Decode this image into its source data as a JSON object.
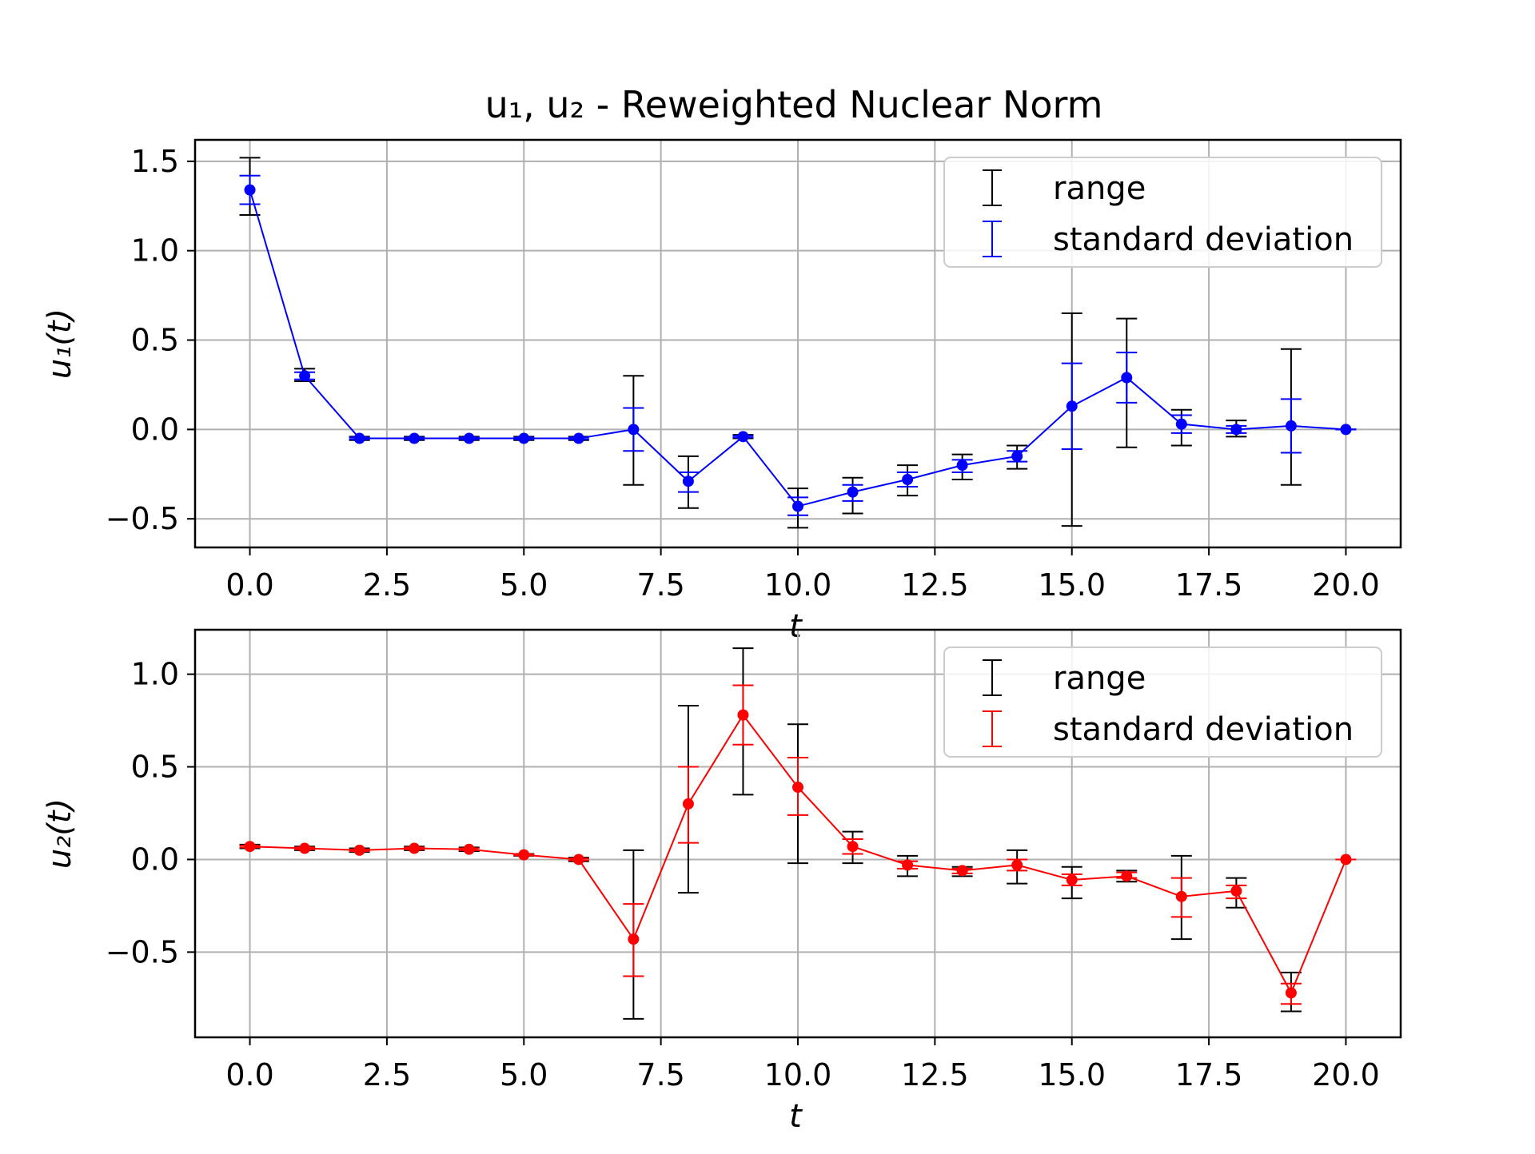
{
  "title": "u₁, u₂ - Reweighted Nuclear Norm",
  "chart_data": [
    {
      "type": "line",
      "name": "top-panel",
      "ylabel": "u₁(t)",
      "xlabel": "t",
      "xlim": [
        -1,
        21
      ],
      "ylim": [
        -0.66,
        1.62
      ],
      "xticks": [
        0,
        2.5,
        5,
        7.5,
        10,
        12.5,
        15,
        17.5,
        20
      ],
      "xtick_labels": [
        "0.0",
        "2.5",
        "5.0",
        "7.5",
        "10.0",
        "12.5",
        "15.0",
        "17.5",
        "20.0"
      ],
      "yticks": [
        -0.5,
        0,
        0.5,
        1.0,
        1.5
      ],
      "ytick_labels": [
        "−0.5",
        "0.0",
        "0.5",
        "1.0",
        "1.5"
      ],
      "grid": true,
      "legend_position": "top-right",
      "legend": [
        "range",
        "standard deviation"
      ],
      "line_color": "#0000ff",
      "range_color": "#000000",
      "x": [
        0,
        1,
        2,
        3,
        4,
        5,
        6,
        7,
        8,
        9,
        10,
        11,
        12,
        13,
        14,
        15,
        16,
        17,
        18,
        19,
        20
      ],
      "values": [
        1.34,
        0.3,
        -0.05,
        -0.05,
        -0.05,
        -0.05,
        -0.05,
        0.0,
        -0.29,
        -0.04,
        -0.43,
        -0.35,
        -0.28,
        -0.2,
        -0.15,
        0.13,
        0.29,
        0.03,
        0.0,
        0.02,
        0.0
      ],
      "range_low": [
        1.2,
        0.27,
        -0.06,
        -0.06,
        -0.06,
        -0.06,
        -0.06,
        -0.31,
        -0.44,
        -0.05,
        -0.55,
        -0.47,
        -0.37,
        -0.28,
        -0.22,
        -0.54,
        -0.1,
        -0.09,
        -0.04,
        -0.31,
        0.0
      ],
      "range_high": [
        1.52,
        0.34,
        -0.04,
        -0.04,
        -0.04,
        -0.04,
        -0.04,
        0.3,
        -0.15,
        -0.03,
        -0.33,
        -0.27,
        -0.2,
        -0.14,
        -0.09,
        0.65,
        0.62,
        0.11,
        0.05,
        0.45,
        0.0
      ],
      "std_low": [
        1.26,
        0.28,
        -0.055,
        -0.055,
        -0.055,
        -0.055,
        -0.055,
        -0.12,
        -0.35,
        -0.045,
        -0.48,
        -0.4,
        -0.32,
        -0.24,
        -0.18,
        -0.11,
        0.15,
        -0.02,
        -0.02,
        -0.13,
        0.0
      ],
      "std_high": [
        1.42,
        0.32,
        -0.045,
        -0.045,
        -0.045,
        -0.045,
        -0.045,
        0.12,
        -0.24,
        -0.035,
        -0.38,
        -0.31,
        -0.24,
        -0.17,
        -0.12,
        0.37,
        0.43,
        0.08,
        0.02,
        0.17,
        0.0
      ]
    },
    {
      "type": "line",
      "name": "bottom-panel",
      "ylabel": "u₂(t)",
      "xlabel": "t",
      "xlim": [
        -1,
        21
      ],
      "ylim": [
        -0.96,
        1.24
      ],
      "xticks": [
        0,
        2.5,
        5,
        7.5,
        10,
        12.5,
        15,
        17.5,
        20
      ],
      "xtick_labels": [
        "0.0",
        "2.5",
        "5.0",
        "7.5",
        "10.0",
        "12.5",
        "15.0",
        "17.5",
        "20.0"
      ],
      "yticks": [
        -0.5,
        0,
        0.5,
        1.0
      ],
      "ytick_labels": [
        "−0.5",
        "0.0",
        "0.5",
        "1.0"
      ],
      "grid": true,
      "legend_position": "top-right",
      "legend": [
        "range",
        "standard deviation"
      ],
      "line_color": "#ff0000",
      "range_color": "#000000",
      "x": [
        0,
        1,
        2,
        3,
        4,
        5,
        6,
        7,
        8,
        9,
        10,
        11,
        12,
        13,
        14,
        15,
        16,
        17,
        18,
        19,
        20
      ],
      "values": [
        0.07,
        0.06,
        0.05,
        0.06,
        0.055,
        0.025,
        0.0,
        -0.43,
        0.3,
        0.78,
        0.39,
        0.07,
        -0.03,
        -0.06,
        -0.03,
        -0.11,
        -0.09,
        -0.2,
        -0.17,
        -0.72,
        0.0
      ],
      "range_low": [
        0.06,
        0.05,
        0.04,
        0.05,
        0.045,
        0.02,
        -0.01,
        -0.86,
        -0.18,
        0.35,
        -0.02,
        -0.02,
        -0.09,
        -0.09,
        -0.13,
        -0.21,
        -0.12,
        -0.43,
        -0.26,
        -0.82,
        0.0
      ],
      "range_high": [
        0.08,
        0.07,
        0.06,
        0.07,
        0.065,
        0.03,
        0.01,
        0.05,
        0.83,
        1.14,
        0.73,
        0.15,
        0.02,
        -0.04,
        0.05,
        -0.04,
        -0.06,
        0.02,
        -0.1,
        -0.61,
        0.0
      ],
      "std_low": [
        0.065,
        0.055,
        0.045,
        0.055,
        0.05,
        0.022,
        -0.005,
        -0.63,
        0.09,
        0.62,
        0.24,
        0.03,
        -0.05,
        -0.075,
        -0.06,
        -0.14,
        -0.1,
        -0.31,
        -0.21,
        -0.78,
        0.0
      ],
      "std_high": [
        0.075,
        0.065,
        0.055,
        0.065,
        0.06,
        0.028,
        0.005,
        -0.24,
        0.5,
        0.94,
        0.55,
        0.11,
        -0.01,
        -0.05,
        0.0,
        -0.08,
        -0.07,
        -0.1,
        -0.14,
        -0.67,
        0.0
      ]
    }
  ]
}
